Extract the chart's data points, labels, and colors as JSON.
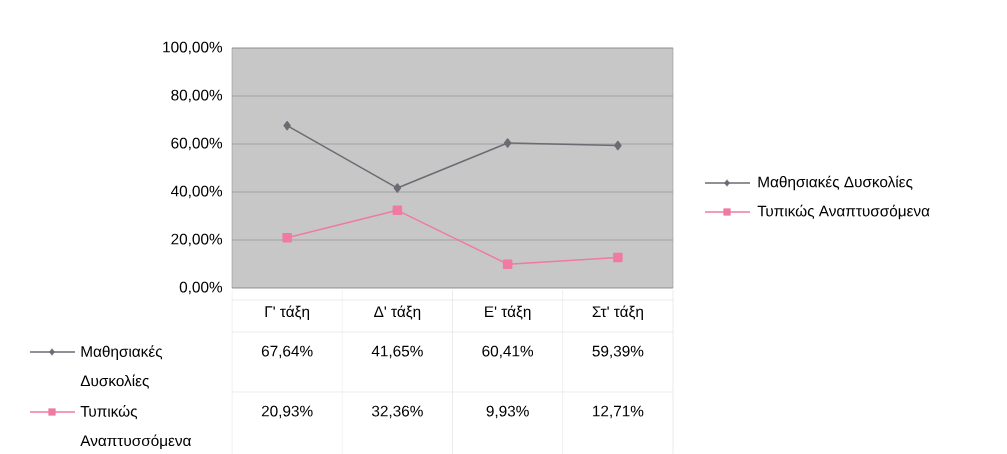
{
  "chart_data": {
    "type": "line",
    "categories": [
      "Γ' τάξη",
      "Δ' τάξη",
      "Ε' τάξη",
      "Στ' τάξη"
    ],
    "series": [
      {
        "name": "Μαθησιακές Δυσκολίες",
        "color": "#6b6b73",
        "marker": "diamond",
        "values": [
          67.64,
          41.65,
          60.41,
          59.39
        ],
        "value_labels": [
          "67,64%",
          "41,65%",
          "60,41%",
          "59,39%"
        ]
      },
      {
        "name": "Τυπικώς Αναπτυσσόμενα",
        "color": "#f07aa0",
        "marker": "square",
        "values": [
          20.93,
          32.36,
          9.93,
          12.71
        ],
        "value_labels": [
          "20,93%",
          "32,36%",
          "9,93%",
          "12,71%"
        ]
      }
    ],
    "ylim": [
      0,
      100
    ],
    "yticks": [
      {
        "value": 0,
        "label": "0,00%"
      },
      {
        "value": 20,
        "label": "20,00%"
      },
      {
        "value": 40,
        "label": "40,00%"
      },
      {
        "value": 60,
        "label": "60,00%"
      },
      {
        "value": 80,
        "label": "80,00%"
      },
      {
        "value": 100,
        "label": "100,00%"
      }
    ],
    "grid": "y",
    "legend": "right",
    "line_style": "solid"
  }
}
